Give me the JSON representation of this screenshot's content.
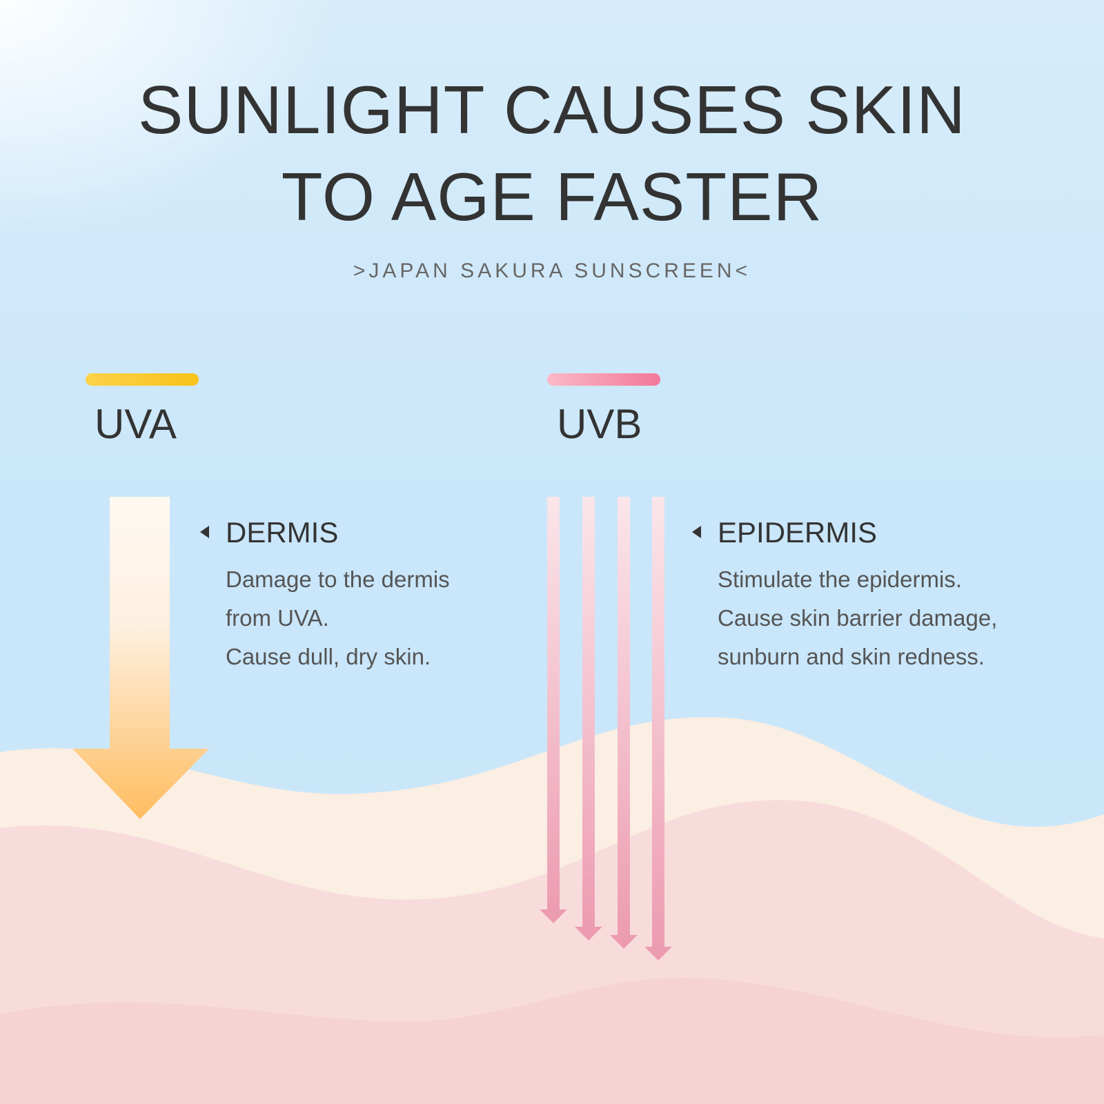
{
  "header": {
    "title_line1": "SUNLIGHT CAUSES SKIN",
    "title_line2": "TO AGE FASTER",
    "subtitle": ">JAPAN SAKURA SUNSCREEN<"
  },
  "uva": {
    "label": "UVA",
    "color": "#f9c21c",
    "arrow_color": "#ffbc5e",
    "layer": "DERMIS",
    "description": [
      "Damage to the dermis",
      "from UVA.",
      "Cause dull, dry skin."
    ]
  },
  "uvb": {
    "label": "UVB",
    "color": "#f3789a",
    "arrow_color": "#ee9db2",
    "layer": "EPIDERMIS",
    "description": [
      "Stimulate the epidermis.",
      "Cause skin barrier damage,",
      "sunburn and skin redness."
    ]
  }
}
